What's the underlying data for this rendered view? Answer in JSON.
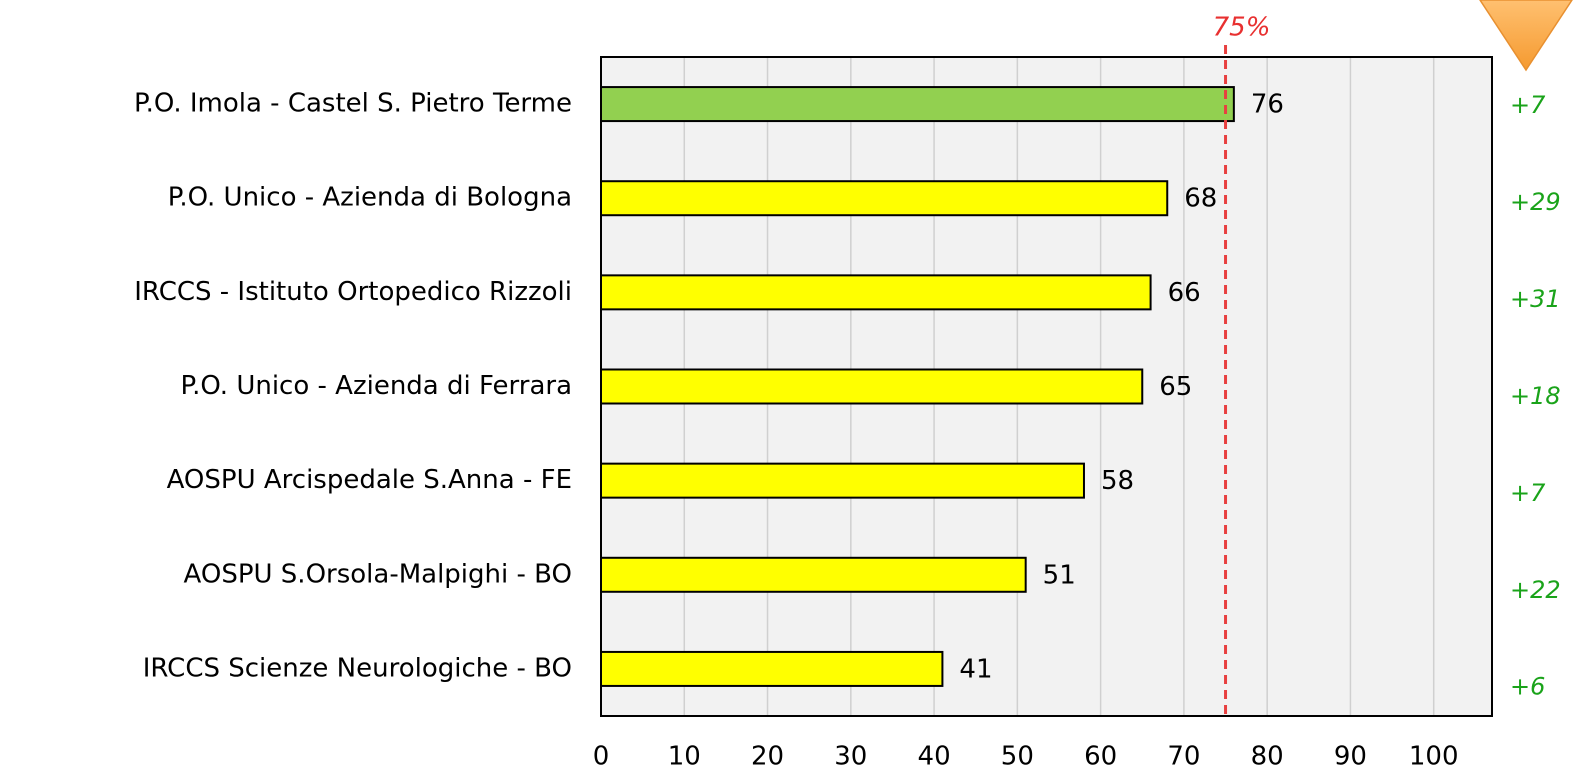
{
  "chart_data": {
    "type": "hbar",
    "categories": [
      "P.O. Imola - Castel S. Pietro Terme",
      "P.O. Unico - Azienda di Bologna",
      "IRCCS - Istituto Ortopedico Rizzoli",
      "P.O. Unico - Azienda di Ferrara",
      "AOSPU Arcispedale S.Anna - FE",
      "AOSPU S.Orsola-Malpighi - BO",
      "IRCCS Scienze Neurologiche - BO"
    ],
    "values": [
      76,
      68,
      66,
      65,
      58,
      51,
      41
    ],
    "colors": [
      "#92d050",
      "#ffff00",
      "#ffff00",
      "#ffff00",
      "#ffff00",
      "#ffff00",
      "#ffff00"
    ],
    "annotations": [
      "+7",
      "+29",
      "+31",
      "+18",
      "+7",
      "+22",
      "+6"
    ],
    "threshold": {
      "value": 75,
      "label": "75%"
    },
    "xlim": [
      0,
      107
    ],
    "xticks": [
      0,
      10,
      20,
      30,
      40,
      50,
      60,
      70,
      80,
      90,
      100
    ],
    "grid": true
  }
}
